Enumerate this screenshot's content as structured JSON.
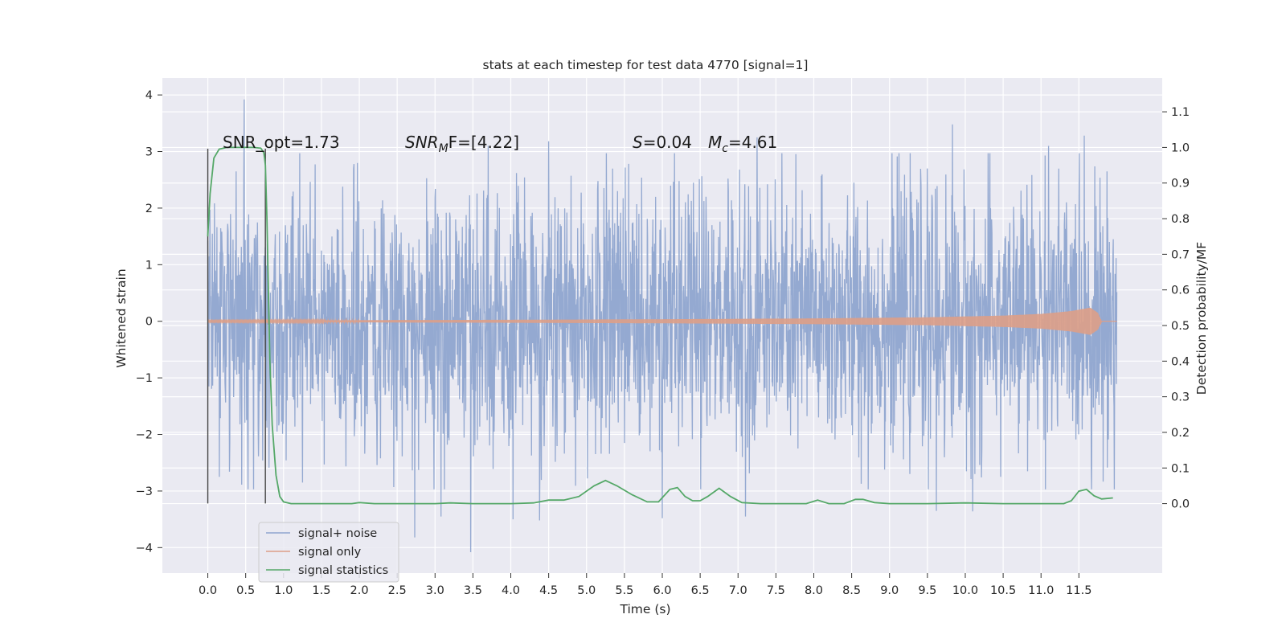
{
  "chart_data": {
    "type": "line",
    "title": "stats at each timestep for test data 4770 [signal=1]",
    "xlabel": "Time (s)",
    "ylabel": "Whitened strain",
    "y2label": "Detection probability/MF",
    "xlim": [
      -0.6,
      12.6
    ],
    "ylim": [
      -4.45,
      4.3
    ],
    "y2lim": [
      -0.195,
      1.195
    ],
    "x_ticks": [
      "0.0",
      "0.5",
      "1.0",
      "1.5",
      "2.0",
      "2.5",
      "3.0",
      "3.5",
      "4.0",
      "4.5",
      "5.0",
      "5.5",
      "6.0",
      "6.5",
      "7.0",
      "7.5",
      "8.0",
      "8.5",
      "9.0",
      "9.5",
      "10.0",
      "10.5",
      "11.0",
      "11.5"
    ],
    "y_ticks": [
      "4",
      "3",
      "2",
      "1",
      "0",
      "−1",
      "−2",
      "−3",
      "−4"
    ],
    "y2_ticks": [
      "0.0",
      "0.1",
      "0.2",
      "0.3",
      "0.4",
      "0.5",
      "0.6",
      "0.7",
      "0.8",
      "0.9",
      "1.0",
      "1.1"
    ],
    "grid": true,
    "legend_position": "lower-left",
    "annotations": {
      "snr_opt": "SNR_opt=1.73",
      "snr_mf_prefix": "SNR",
      "snr_mf_sub": "M",
      "snr_mf_suffix": "F=[4.22]",
      "s_var": "S",
      "s_value": "=0.04",
      "mc_var": "M",
      "mc_sub": "c",
      "mc_value": "=4.61"
    },
    "vertical_markers": [
      0.0,
      0.76
    ],
    "series": [
      {
        "name": "signal+ noise",
        "axis": "left",
        "color": "#8fa5cf",
        "x_range": [
          0.0,
          12.0
        ],
        "typical_envelope": [
          -2.2,
          2.2
        ],
        "spikes": [
          {
            "x": 0.48,
            "y": 3.92
          },
          {
            "x": 3.47,
            "y": -4.08
          },
          {
            "x": 2.73,
            "y": -3.82
          },
          {
            "x": 4.03,
            "y": -3.5
          },
          {
            "x": 4.38,
            "y": -3.52
          },
          {
            "x": 9.83,
            "y": 3.48
          },
          {
            "x": 11.57,
            "y": 3.28
          },
          {
            "x": 4.5,
            "y": 3.18
          },
          {
            "x": 7.25,
            "y": 3.25
          },
          {
            "x": 10.1,
            "y": -3.36
          },
          {
            "x": 9.62,
            "y": -3.35
          },
          {
            "x": 6.0,
            "y": -3.48
          },
          {
            "x": 3.08,
            "y": -3.45
          },
          {
            "x": 1.25,
            "y": -2.85
          },
          {
            "x": 0.15,
            "y": -2.75
          },
          {
            "x": 7.1,
            "y": -3.45
          },
          {
            "x": 11.1,
            "y": 3.1
          },
          {
            "x": 3.7,
            "y": 3.1
          }
        ]
      },
      {
        "name": "signal only",
        "axis": "left",
        "color": "#dd9e87",
        "x": [
          0.0,
          2.0,
          4.0,
          6.0,
          8.0,
          9.5,
          10.5,
          11.0,
          11.4,
          11.65,
          11.75,
          11.8
        ],
        "amplitude": [
          0.012,
          0.018,
          0.025,
          0.035,
          0.05,
          0.07,
          0.1,
          0.13,
          0.18,
          0.24,
          0.15,
          0.0
        ]
      },
      {
        "name": "signal statistics",
        "axis": "right",
        "color": "#55a868",
        "x": [
          0.0,
          0.03,
          0.08,
          0.15,
          0.25,
          0.4,
          0.6,
          0.7,
          0.74,
          0.76,
          0.78,
          0.8,
          0.82,
          0.85,
          0.9,
          0.95,
          1.0,
          1.1,
          1.5,
          1.9,
          2.0,
          2.2,
          2.5,
          3.0,
          3.2,
          3.5,
          4.0,
          4.3,
          4.5,
          4.7,
          4.9,
          5.1,
          5.25,
          5.4,
          5.6,
          5.8,
          5.95,
          6.1,
          6.2,
          6.3,
          6.4,
          6.5,
          6.6,
          6.75,
          6.9,
          7.05,
          7.3,
          7.6,
          7.9,
          8.05,
          8.2,
          8.4,
          8.55,
          8.65,
          8.8,
          9.0,
          9.5,
          10.0,
          10.5,
          11.0,
          11.3,
          11.4,
          11.5,
          11.6,
          11.7,
          11.8,
          11.95
        ],
        "y": [
          0.75,
          0.87,
          0.97,
          0.995,
          1.0,
          1.0,
          1.0,
          0.998,
          0.985,
          0.95,
          0.8,
          0.6,
          0.4,
          0.22,
          0.08,
          0.02,
          0.005,
          0.0,
          0.0,
          0.0,
          0.003,
          0.0,
          0.0,
          0.0,
          0.002,
          0.0,
          0.0,
          0.002,
          0.01,
          0.01,
          0.02,
          0.05,
          0.065,
          0.05,
          0.025,
          0.005,
          0.005,
          0.04,
          0.045,
          0.02,
          0.008,
          0.008,
          0.02,
          0.043,
          0.02,
          0.003,
          0.0,
          0.0,
          0.0,
          0.01,
          0.0,
          0.0,
          0.012,
          0.012,
          0.003,
          0.0,
          0.0,
          0.002,
          0.0,
          0.0,
          0.0,
          0.008,
          0.035,
          0.04,
          0.022,
          0.013,
          0.016
        ]
      }
    ]
  }
}
